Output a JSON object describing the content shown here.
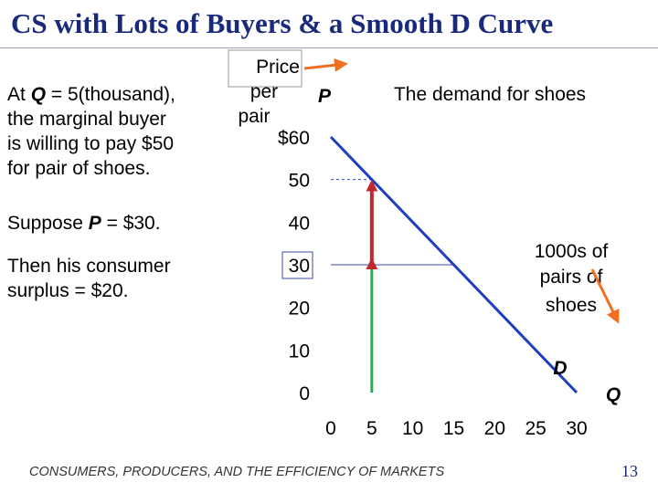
{
  "slide": {
    "title": "CS with Lots of Buyers & a Smooth D Curve",
    "text_lines": [
      {
        "pre": "At ",
        "var": "Q",
        "post": " = 5(thousand),"
      },
      {
        "pre": "the marginal buyer",
        "var": "",
        "post": ""
      },
      {
        "pre": "is willing to pay $50",
        "var": "",
        "post": ""
      },
      {
        "pre": "for pair of shoes.",
        "var": "",
        "post": ""
      }
    ],
    "suppose": {
      "pre": "Suppose ",
      "var": "P",
      "post": " = $30."
    },
    "surplus_lines": [
      "Then his consumer",
      "surplus = $20."
    ],
    "footer": "CONSUMERS, PRODUCERS, AND THE EFFICIENCY OF MARKETS",
    "page_number": "13"
  },
  "chart_data": {
    "type": "line",
    "title": "The demand for shoes",
    "y_axis_symbol": "P",
    "x_axis_symbol": "Q",
    "y_callout_lines": [
      "Price",
      "per",
      "pair"
    ],
    "x_callout_lines": [
      "1000s of",
      "pairs of",
      "shoes"
    ],
    "x_ticks": [
      "0",
      "5",
      "10",
      "15",
      "20",
      "25",
      "30"
    ],
    "y_ticks": [
      "0",
      "10",
      "20",
      "30",
      "40",
      "50",
      "$60"
    ],
    "xlim": [
      0,
      30
    ],
    "ylim": [
      0,
      60
    ],
    "series": [
      {
        "name": "D",
        "x": [
          0,
          30
        ],
        "y": [
          60,
          0
        ]
      }
    ],
    "guides": {
      "willingness_to_pay": {
        "q": 5,
        "p": 50
      },
      "price": 30,
      "price_line_end_q": 15
    },
    "highlighted_tick": "30",
    "colors": {
      "demand": "#1f3fbf",
      "quantity_bar": "#22b14c",
      "surplus_arrow": "#c0282d",
      "callout_arrow": "#f07020",
      "guide": "#3b4aa8"
    }
  }
}
